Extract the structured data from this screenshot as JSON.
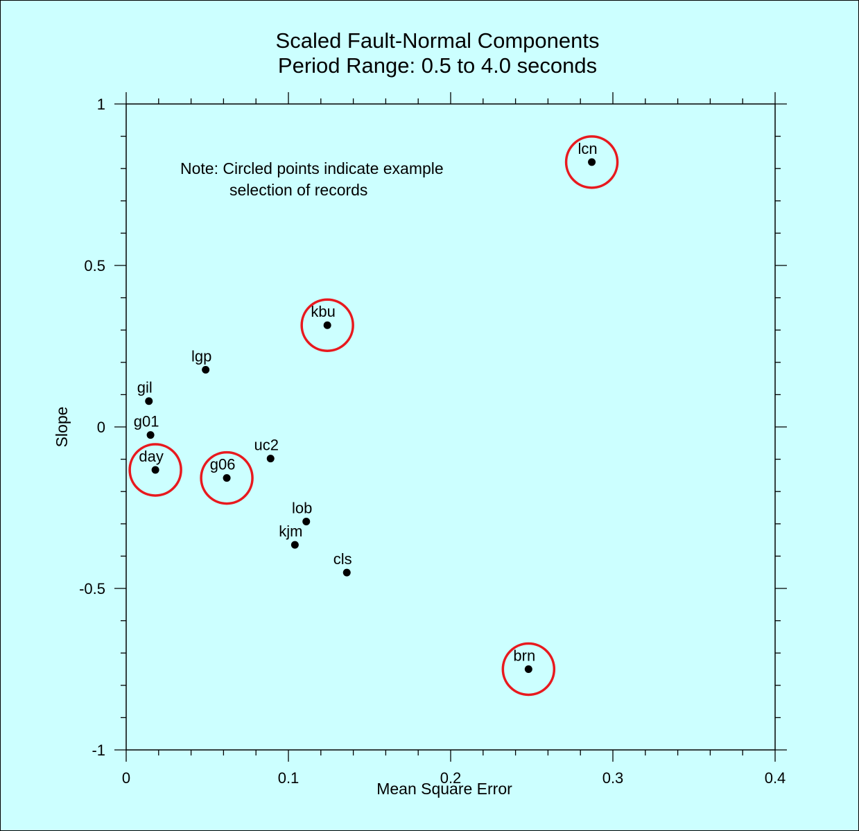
{
  "chart_data": {
    "type": "scatter",
    "title": "Scaled Fault-Normal Components",
    "subtitle": "Period Range: 0.5 to 4.0 seconds",
    "xlabel": "Mean Square Error",
    "ylabel": "Slope",
    "xlim": [
      0,
      0.4
    ],
    "ylim": [
      -1,
      1
    ],
    "x_ticks": [
      "0",
      "0.1",
      "0.2",
      "0.3",
      "0.4"
    ],
    "y_ticks": [
      "1",
      "0.5",
      "0",
      "-0.5",
      "-1"
    ],
    "x_tick_values": [
      0,
      0.1,
      0.2,
      0.3,
      0.4
    ],
    "y_tick_values": [
      1,
      0.5,
      0,
      -0.5,
      -1
    ],
    "x_minor_step": 0.02,
    "y_minor_step": 0.1,
    "grid": false,
    "note": [
      "Note: Circled points indicate example",
      "selection of records"
    ],
    "point_color": "#000000",
    "highlight_color": "#e8191e",
    "background": "#ccffff",
    "points": [
      {
        "label": "lcn",
        "x": 0.287,
        "y": 0.82,
        "circled": true
      },
      {
        "label": "kbu",
        "x": 0.124,
        "y": 0.315,
        "circled": true
      },
      {
        "label": "lgp",
        "x": 0.049,
        "y": 0.177,
        "circled": false
      },
      {
        "label": "gil",
        "x": 0.014,
        "y": 0.08,
        "circled": false
      },
      {
        "label": "g01",
        "x": 0.015,
        "y": -0.025,
        "circled": false
      },
      {
        "label": "uc2",
        "x": 0.089,
        "y": -0.098,
        "circled": false
      },
      {
        "label": "day",
        "x": 0.018,
        "y": -0.133,
        "circled": true
      },
      {
        "label": "g06",
        "x": 0.062,
        "y": -0.158,
        "circled": true
      },
      {
        "label": "lob",
        "x": 0.111,
        "y": -0.293,
        "circled": false
      },
      {
        "label": "kjm",
        "x": 0.104,
        "y": -0.365,
        "circled": false
      },
      {
        "label": "cls",
        "x": 0.136,
        "y": -0.451,
        "circled": false
      },
      {
        "label": "brn",
        "x": 0.248,
        "y": -0.75,
        "circled": true
      }
    ]
  }
}
